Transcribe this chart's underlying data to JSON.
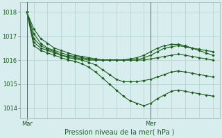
{
  "bg_color": "#d8eeee",
  "grid_color": "#b0d0d0",
  "line_color": "#1a5c1a",
  "marker_color": "#1a5c1a",
  "xlabel": "Pression niveau de la mer( hPa )",
  "ylim": [
    1013.6,
    1018.4
  ],
  "yticks": [
    1014,
    1015,
    1016,
    1017,
    1018
  ],
  "xlabel_fontsize": 7,
  "tick_fontsize": 6,
  "mar_x": 6,
  "mer_x": 42,
  "xlim": [
    4,
    62
  ],
  "series": [
    {
      "x": [
        6,
        8,
        10,
        12,
        14,
        16,
        18,
        20,
        22,
        24,
        26,
        28,
        30,
        32,
        34,
        36,
        38,
        40,
        42,
        44,
        46,
        48,
        50,
        52,
        54,
        56,
        58,
        60
      ],
      "y": [
        1018.0,
        1017.3,
        1016.9,
        1016.7,
        1016.5,
        1016.4,
        1016.3,
        1016.2,
        1016.15,
        1016.1,
        1016.05,
        1016.0,
        1016.0,
        1016.0,
        1016.0,
        1016.0,
        1016.0,
        1016.0,
        1016.05,
        1016.1,
        1016.15,
        1016.2,
        1016.25,
        1016.2,
        1016.15,
        1016.1,
        1016.05,
        1016.0
      ],
      "linewidth": 0.8,
      "markersize": 1.8
    },
    {
      "x": [
        6,
        8,
        10,
        12,
        14,
        16,
        18,
        20,
        22,
        24,
        26,
        28,
        30,
        32,
        34,
        36,
        38,
        40,
        42,
        44,
        46,
        48,
        50,
        52,
        54,
        56,
        58,
        60
      ],
      "y": [
        1018.0,
        1017.1,
        1016.7,
        1016.5,
        1016.4,
        1016.3,
        1016.2,
        1016.15,
        1016.1,
        1016.05,
        1016.0,
        1016.0,
        1016.0,
        1016.0,
        1016.0,
        1016.0,
        1016.0,
        1016.1,
        1016.2,
        1016.35,
        1016.5,
        1016.55,
        1016.6,
        1016.55,
        1016.5,
        1016.45,
        1016.4,
        1016.35
      ],
      "linewidth": 0.8,
      "markersize": 1.8
    },
    {
      "x": [
        6,
        8,
        10,
        12,
        14,
        16,
        18,
        20,
        22,
        24,
        26,
        28,
        30,
        32,
        34,
        36,
        38,
        40,
        42,
        44,
        46,
        48,
        50,
        52,
        54,
        56,
        58,
        60
      ],
      "y": [
        1018.0,
        1016.9,
        1016.6,
        1016.45,
        1016.35,
        1016.2,
        1016.15,
        1016.1,
        1016.05,
        1016.0,
        1016.0,
        1016.0,
        1016.0,
        1016.0,
        1016.0,
        1016.05,
        1016.1,
        1016.2,
        1016.35,
        1016.5,
        1016.6,
        1016.65,
        1016.65,
        1016.6,
        1016.5,
        1016.4,
        1016.3,
        1016.2
      ],
      "linewidth": 0.8,
      "markersize": 1.8
    },
    {
      "x": [
        6,
        8,
        10,
        12,
        14,
        16,
        18,
        20,
        22,
        24,
        26,
        28,
        30,
        32,
        34,
        36,
        38,
        40,
        42,
        44,
        46,
        48,
        50,
        52,
        54,
        56,
        58,
        60
      ],
      "y": [
        1018.0,
        1016.75,
        1016.5,
        1016.4,
        1016.3,
        1016.2,
        1016.1,
        1016.05,
        1016.0,
        1015.9,
        1015.8,
        1015.6,
        1015.4,
        1015.2,
        1015.1,
        1015.1,
        1015.1,
        1015.15,
        1015.2,
        1015.3,
        1015.4,
        1015.5,
        1015.55,
        1015.5,
        1015.45,
        1015.4,
        1015.35,
        1015.3
      ],
      "linewidth": 0.8,
      "markersize": 1.8
    },
    {
      "x": [
        6,
        8,
        10,
        12,
        14,
        16,
        18,
        20,
        22,
        24,
        26,
        28,
        30,
        32,
        34,
        36,
        38,
        40,
        42,
        44,
        46,
        48,
        50,
        52,
        54,
        56,
        58,
        60
      ],
      "y": [
        1018.0,
        1016.6,
        1016.4,
        1016.3,
        1016.2,
        1016.1,
        1016.0,
        1015.95,
        1015.85,
        1015.7,
        1015.5,
        1015.25,
        1015.0,
        1014.75,
        1014.5,
        1014.3,
        1014.2,
        1014.1,
        1014.2,
        1014.4,
        1014.55,
        1014.7,
        1014.75,
        1014.7,
        1014.65,
        1014.6,
        1014.55,
        1014.5
      ],
      "linewidth": 0.8,
      "markersize": 1.8
    }
  ]
}
